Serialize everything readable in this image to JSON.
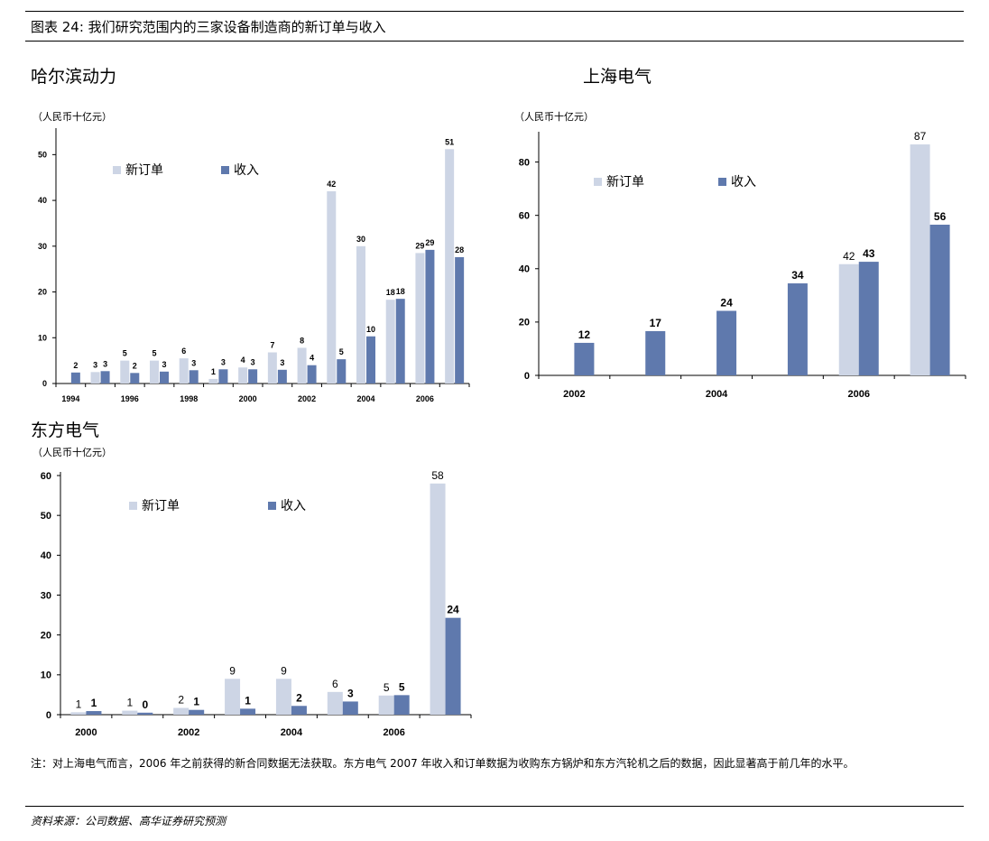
{
  "figure_title": "图表 24:    我们研究范围内的三家设备制造商的新订单与收入",
  "note": "注：对上海电气而言，2006 年之前获得的新合同数据无法获取。东方电气 2007 年收入和订单数据为收购东方锅炉和东方汽轮机之后的数据，因此显著高于前几年的水平。",
  "source": "资料来源：公司数据、高华证券研究预测",
  "colors": {
    "new_orders": "#cdd5e5",
    "revenue": "#5f79ad"
  },
  "chart_data": [
    {
      "type": "bar",
      "title": "哈尔滨动力",
      "ylabel": "（人民币十亿元）",
      "ylim": [
        0,
        55
      ],
      "yticks": [
        0,
        10,
        20,
        30,
        40,
        50
      ],
      "categories": [
        "1994",
        "1995",
        "1996",
        "1997",
        "1998",
        "1999",
        "2000",
        "2001",
        "2002",
        "2003",
        "2004",
        "2005",
        "2006",
        "2007"
      ],
      "x_tick_labels": [
        "1994",
        "",
        "1996",
        "",
        "1998",
        "",
        "2000",
        "",
        "2002",
        "",
        "2004",
        "",
        "2006",
        ""
      ],
      "series": [
        {
          "name": "新订单",
          "values": [
            null,
            2.5,
            5,
            5,
            5.5,
            1,
            3.5,
            6.8,
            7.8,
            42,
            30,
            18.3,
            28.5,
            51.2
          ],
          "labels": [
            "",
            "3",
            "5",
            "5",
            "6",
            "1",
            "4",
            "7",
            "8",
            "42",
            "30",
            "18",
            "29",
            "51"
          ]
        },
        {
          "name": "收入",
          "values": [
            2.4,
            2.7,
            2.3,
            2.6,
            2.9,
            3.1,
            3.1,
            3,
            4,
            5.3,
            10.3,
            18.5,
            29.2,
            27.6
          ],
          "labels": [
            "2",
            "3",
            "2",
            "3",
            "3",
            "3",
            "3",
            "3",
            "4",
            "5",
            "10",
            "18",
            "29",
            "28"
          ]
        }
      ],
      "legend": "top-left"
    },
    {
      "type": "bar",
      "title": "上海电气",
      "ylabel": "（人民币十亿元）",
      "ylim": [
        0,
        90
      ],
      "yticks": [
        0,
        20,
        40,
        60,
        80
      ],
      "categories": [
        "2002",
        "2003",
        "2004",
        "2005",
        "2006",
        "2007"
      ],
      "x_tick_labels": [
        "2002",
        "",
        "2004",
        "",
        "2006",
        ""
      ],
      "series": [
        {
          "name": "新订单",
          "values": [
            null,
            null,
            null,
            null,
            41.7,
            86.6
          ],
          "labels": [
            "",
            "",
            "",
            "",
            "42",
            "87"
          ]
        },
        {
          "name": "收入",
          "values": [
            12.2,
            16.6,
            24.2,
            34.5,
            42.6,
            56.5
          ],
          "labels": [
            "12",
            "17",
            "24",
            "34",
            "43",
            "56"
          ]
        }
      ],
      "legend": "top-left"
    },
    {
      "type": "bar",
      "title": "东方电气",
      "ylabel": "（人民币十亿元）",
      "ylim": [
        0,
        60
      ],
      "yticks": [
        0,
        10,
        20,
        30,
        40,
        50,
        60
      ],
      "categories": [
        "2000",
        "2001",
        "2002",
        "2003",
        "2004",
        "2005",
        "2006",
        "2007"
      ],
      "x_tick_labels": [
        "2000",
        "",
        "2002",
        "",
        "2004",
        "",
        "2006",
        ""
      ],
      "series": [
        {
          "name": "新订单",
          "values": [
            0.6,
            1,
            1.7,
            9,
            9,
            5.7,
            4.8,
            58
          ],
          "labels": [
            "1",
            "1",
            "2",
            "9",
            "9",
            "6",
            "5",
            "58"
          ]
        },
        {
          "name": "收入",
          "values": [
            0.9,
            0.5,
            1.2,
            1.5,
            2.2,
            3.3,
            4.9,
            24.3
          ],
          "labels": [
            "1",
            "0",
            "1",
            "1",
            "2",
            "3",
            "5",
            "24"
          ]
        }
      ],
      "legend": "top-left"
    }
  ]
}
